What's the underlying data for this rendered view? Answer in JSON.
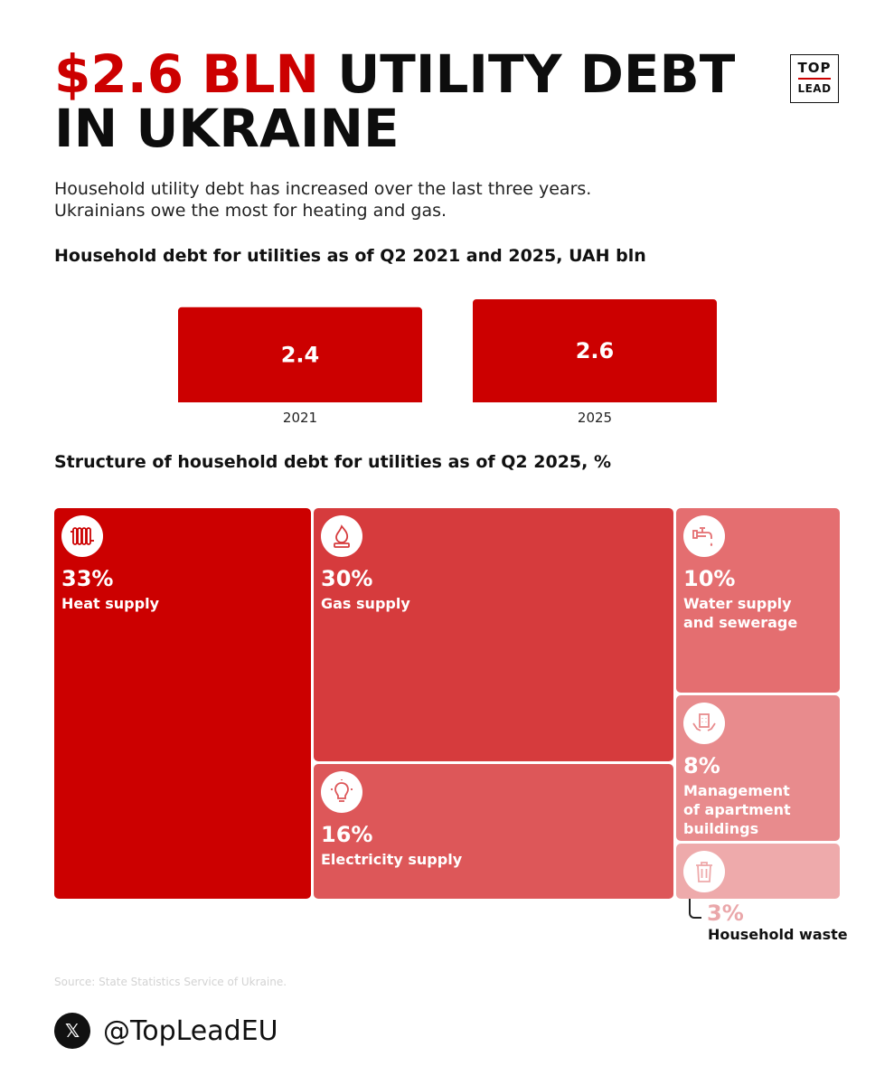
{
  "header": {
    "title_accent": "$2.6 BLN",
    "title_rest": " UTILITY DEBT",
    "title_line2": "IN UKRAINE",
    "subtitle_line1": "Household utility debt has increased over the last three years.",
    "subtitle_line2": "Ukrainians owe the most for heating and gas."
  },
  "logo": {
    "top": "TOP",
    "bottom": "LEAD"
  },
  "colors": {
    "accent": "#cc0000",
    "heat": "#cc0000",
    "gas": "#d63b3d",
    "electricity": "#dd5759",
    "water": "#e46e70",
    "management": "#e88b8d",
    "waste": "#eeaaab"
  },
  "chart_data": [
    {
      "type": "bar",
      "title": "Household debt for utilities as of Q2 2021 and 2025, UAH bln",
      "categories": [
        "2021",
        "2025"
      ],
      "values": [
        2.4,
        2.6
      ],
      "value_labels": [
        "2.4",
        "2.6"
      ],
      "grid": false
    },
    {
      "type": "treemap",
      "title": "Structure of household debt for utilities as of Q2 2025, %",
      "items": [
        {
          "label": "Heat supply",
          "value": 33,
          "value_label": "33%",
          "icon": "radiator-icon"
        },
        {
          "label": "Gas supply",
          "value": 30,
          "value_label": "30%",
          "icon": "gas-flame-icon"
        },
        {
          "label": "Electricity supply",
          "value": 16,
          "value_label": "16%",
          "icon": "lightbulb-icon"
        },
        {
          "label": "Water supply and sewerage",
          "value": 10,
          "value_label": "10%",
          "icon": "water-tap-icon"
        },
        {
          "label": "Management of apartment buildings",
          "value": 8,
          "value_label": "8%",
          "icon": "building-hands-icon"
        },
        {
          "label": "Household waste",
          "value": 3,
          "value_label": "3%",
          "icon": "trash-bin-icon"
        }
      ]
    }
  ],
  "tiles": {
    "water_line1": "Water supply",
    "water_line2": "and sewerage",
    "management_line1": "Management",
    "management_line2": "of apartment",
    "management_line3": "buildings"
  },
  "footer": {
    "source": "Source: State Statistics Service of Ukraine.",
    "social_icon": "x-icon",
    "social_glyph": "𝕏",
    "handle": "@TopLeadEU"
  }
}
